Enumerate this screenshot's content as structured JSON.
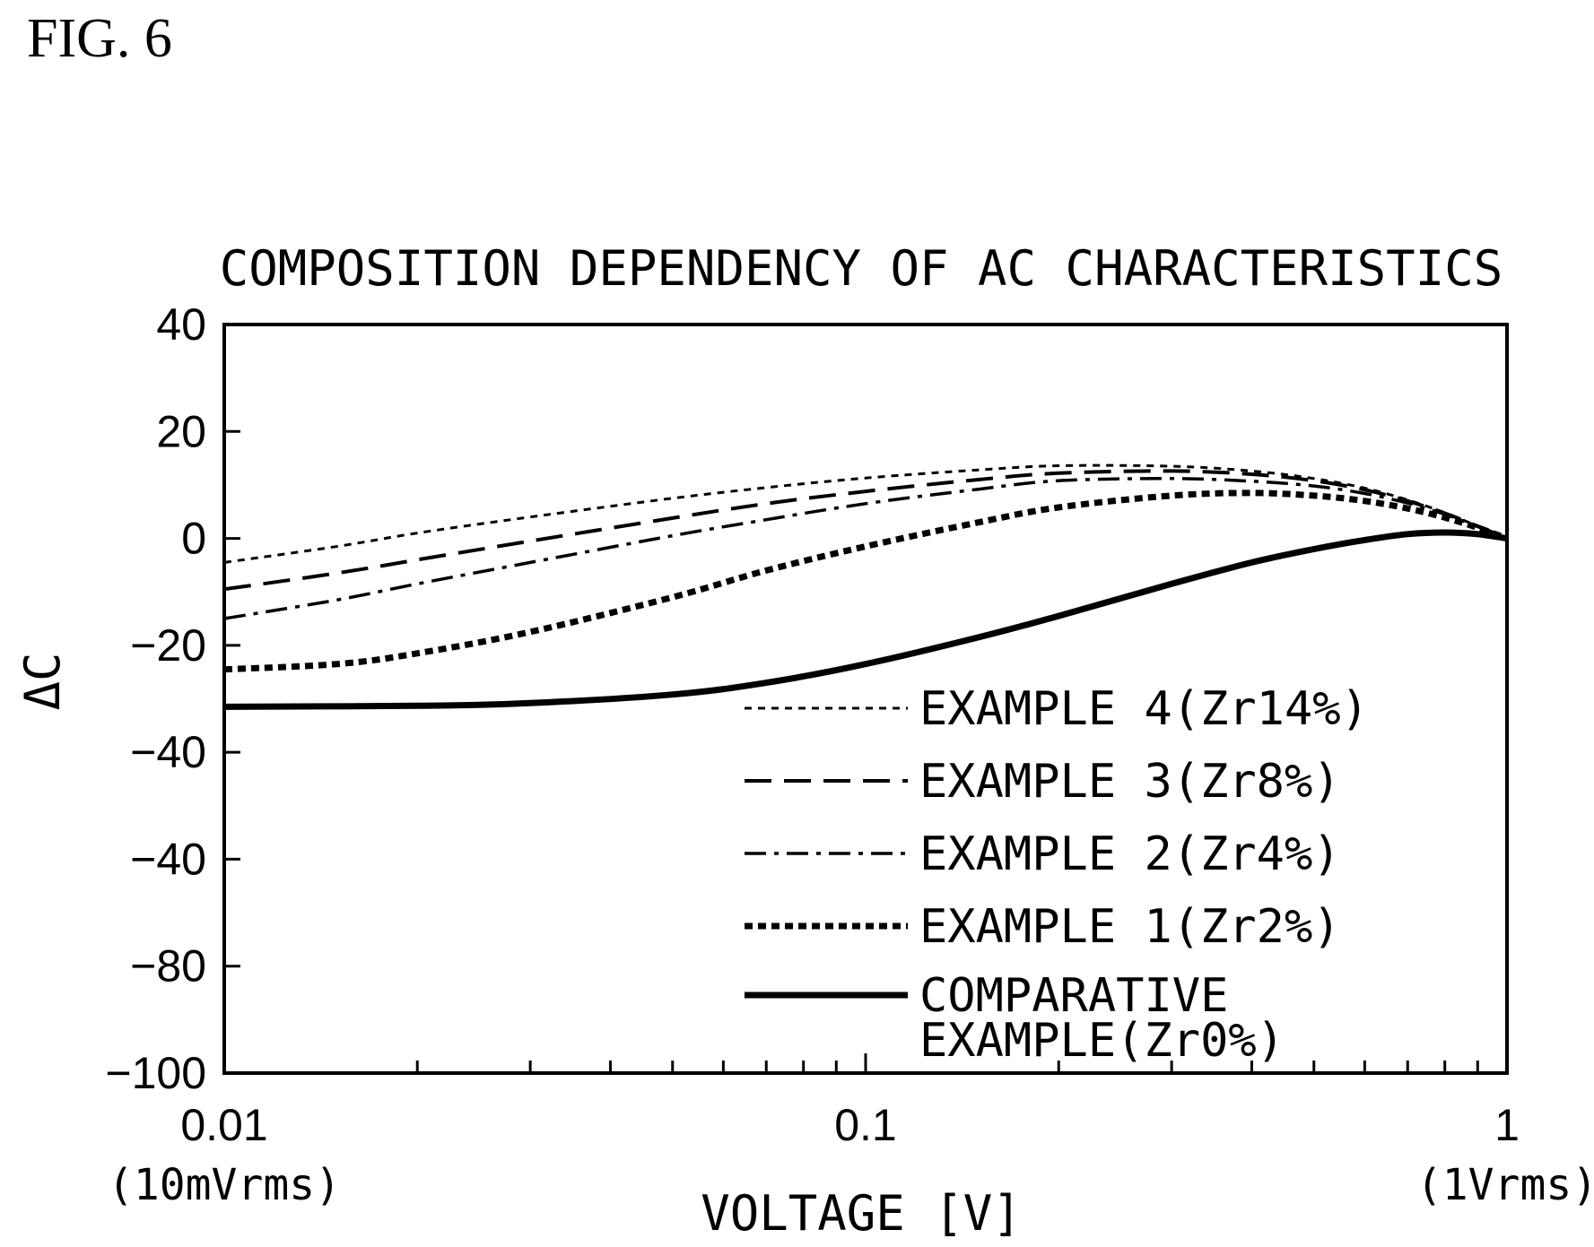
{
  "figure_label": "FIG. 6",
  "chart_data": {
    "type": "line",
    "title": "COMPOSITION DEPENDENCY OF AC CHARACTERISTICS",
    "xlabel": "VOLTAGE [V]",
    "ylabel": "ΔC",
    "x_scale": "log",
    "xlim": [
      0.01,
      1
    ],
    "ylim": [
      -100,
      40
    ],
    "x_ticks": [
      {
        "value": 0.01,
        "label": "0.01",
        "sublabel": "(10mVrms)"
      },
      {
        "value": 0.1,
        "label": "0.1",
        "sublabel": ""
      },
      {
        "value": 1,
        "label": "1",
        "sublabel": "(1Vrms)"
      }
    ],
    "y_tick_labels": [
      "40",
      "20",
      "0",
      "−20",
      "−40",
      "−40",
      "−80",
      "−100"
    ],
    "grid": false,
    "legend_position": "bottom-right",
    "series": [
      {
        "name": "EXAMPLE 4(Zr14%)",
        "style": "short-dash-thin",
        "points": [
          [
            0.01,
            -4.5
          ],
          [
            0.015,
            -1.5
          ],
          [
            0.02,
            1
          ],
          [
            0.03,
            4
          ],
          [
            0.05,
            7.5
          ],
          [
            0.07,
            9.5
          ],
          [
            0.1,
            11.3
          ],
          [
            0.15,
            12.8
          ],
          [
            0.2,
            13.6
          ],
          [
            0.3,
            13.5
          ],
          [
            0.4,
            12.6
          ],
          [
            0.5,
            11.2
          ],
          [
            0.6,
            9.4
          ],
          [
            0.7,
            7.2
          ],
          [
            0.8,
            4.8
          ],
          [
            0.9,
            2.3
          ],
          [
            1,
            0
          ]
        ]
      },
      {
        "name": "EXAMPLE 3(Zr8%)",
        "style": "long-dash",
        "points": [
          [
            0.01,
            -9.5
          ],
          [
            0.015,
            -6.5
          ],
          [
            0.02,
            -4
          ],
          [
            0.03,
            -0.5
          ],
          [
            0.05,
            3.8
          ],
          [
            0.07,
            6.5
          ],
          [
            0.1,
            8.8
          ],
          [
            0.15,
            11
          ],
          [
            0.2,
            12.2
          ],
          [
            0.3,
            12.6
          ],
          [
            0.4,
            12
          ],
          [
            0.5,
            10.8
          ],
          [
            0.6,
            9.1
          ],
          [
            0.7,
            7
          ],
          [
            0.8,
            4.7
          ],
          [
            0.9,
            2.3
          ],
          [
            1,
            0
          ]
        ]
      },
      {
        "name": "EXAMPLE 2(Zr4%)",
        "style": "dash-dot",
        "points": [
          [
            0.01,
            -15
          ],
          [
            0.015,
            -11.5
          ],
          [
            0.02,
            -8.5
          ],
          [
            0.03,
            -4.5
          ],
          [
            0.05,
            0.5
          ],
          [
            0.07,
            3.5
          ],
          [
            0.1,
            6.5
          ],
          [
            0.15,
            9.2
          ],
          [
            0.2,
            10.8
          ],
          [
            0.3,
            11.2
          ],
          [
            0.4,
            10.7
          ],
          [
            0.5,
            9.8
          ],
          [
            0.6,
            8.4
          ],
          [
            0.7,
            6.6
          ],
          [
            0.8,
            4.5
          ],
          [
            0.9,
            2.2
          ],
          [
            1,
            0
          ]
        ]
      },
      {
        "name": "EXAMPLE 1(Zr2%)",
        "style": "short-dash-bold",
        "points": [
          [
            0.01,
            -24.5
          ],
          [
            0.015,
            -23.5
          ],
          [
            0.02,
            -21.5
          ],
          [
            0.03,
            -17.5
          ],
          [
            0.05,
            -11
          ],
          [
            0.07,
            -6
          ],
          [
            0.1,
            -1.5
          ],
          [
            0.15,
            3
          ],
          [
            0.2,
            5.8
          ],
          [
            0.3,
            8
          ],
          [
            0.4,
            8.5
          ],
          [
            0.5,
            8
          ],
          [
            0.6,
            7
          ],
          [
            0.7,
            5.6
          ],
          [
            0.8,
            3.9
          ],
          [
            0.9,
            2
          ],
          [
            1,
            0
          ]
        ]
      },
      {
        "name": "COMPARATIVE EXAMPLE(Zr0%)",
        "name_lines": [
          "COMPARATIVE",
          "EXAMPLE(Zr0%)"
        ],
        "style": "solid-bold",
        "points": [
          [
            0.01,
            -31.5
          ],
          [
            0.02,
            -31.3
          ],
          [
            0.03,
            -30.8
          ],
          [
            0.05,
            -29.2
          ],
          [
            0.07,
            -27
          ],
          [
            0.1,
            -23.5
          ],
          [
            0.15,
            -18.5
          ],
          [
            0.2,
            -14.5
          ],
          [
            0.3,
            -8.5
          ],
          [
            0.4,
            -4.5
          ],
          [
            0.5,
            -2
          ],
          [
            0.6,
            -0.3
          ],
          [
            0.7,
            0.8
          ],
          [
            0.8,
            1.1
          ],
          [
            0.9,
            0.8
          ],
          [
            1,
            0
          ]
        ]
      }
    ]
  }
}
